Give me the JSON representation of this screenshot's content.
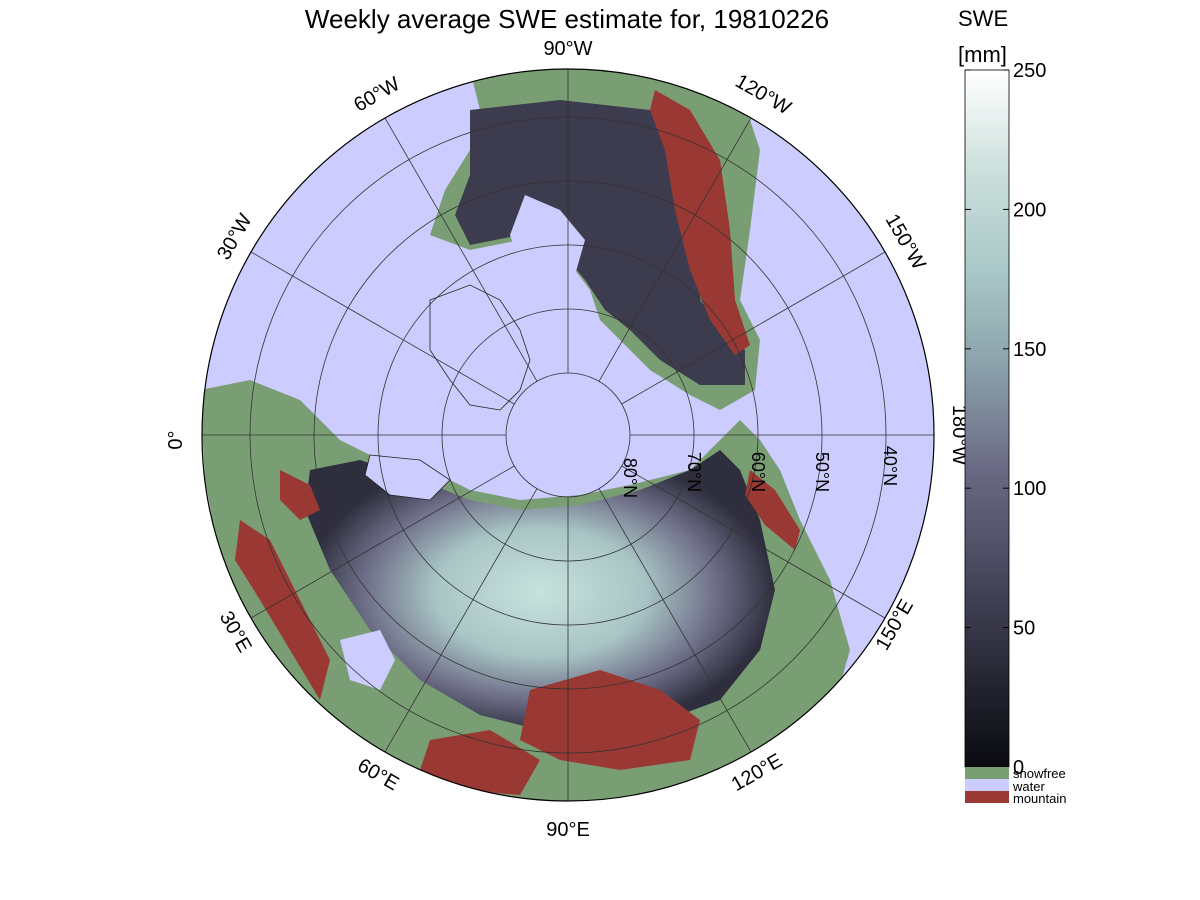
{
  "title": "Weekly average SWE estimate for, 19810226",
  "colorbar": {
    "label_line1": "SWE",
    "label_line2": "[mm]",
    "ticks": [
      "250",
      "200",
      "150",
      "100",
      "50",
      "0"
    ],
    "tick_values": [
      250,
      200,
      150,
      100,
      50,
      0
    ],
    "range": [
      0,
      250
    ],
    "stops": [
      "#0a0a10",
      "#2a2a38",
      "#4a4a60",
      "#6a6a84",
      "#8aa0aa",
      "#aac8c8",
      "#cce0dc",
      "#ffffff"
    ]
  },
  "legend": [
    {
      "label": "snowfree",
      "color": "#7a9e74"
    },
    {
      "label": "water",
      "color": "#ccccff"
    },
    {
      "label": "mountain",
      "color": "#9a3834"
    }
  ],
  "map": {
    "projection": "north polar stereographic",
    "ocean_color": "#ccccff",
    "land_snowfree_color": "#7a9e74",
    "snow_low_color": "#3a3a4c",
    "snow_high_color": "#b8d8d4",
    "mountain_color": "#9a3834",
    "longitude_labels": [
      {
        "text": "90°W",
        "lon": -90
      },
      {
        "text": "120°W",
        "lon": -120
      },
      {
        "text": "150°W",
        "lon": -150
      },
      {
        "text": "180°W",
        "lon": 180
      },
      {
        "text": "150°E",
        "lon": 150
      },
      {
        "text": "120°E",
        "lon": 120
      },
      {
        "text": "90°E",
        "lon": 90
      },
      {
        "text": "60°E",
        "lon": 60
      },
      {
        "text": "30°E",
        "lon": 30
      },
      {
        "text": "0°",
        "lon": 0
      },
      {
        "text": "30°W",
        "lon": -30
      },
      {
        "text": "60°W",
        "lon": -60
      }
    ],
    "latitude_labels": [
      {
        "text": "80°N",
        "lat": 80
      },
      {
        "text": "70°N",
        "lat": 70
      },
      {
        "text": "60°N",
        "lat": 60
      },
      {
        "text": "50°N",
        "lat": 50
      },
      {
        "text": "40°N",
        "lat": 40
      }
    ]
  }
}
